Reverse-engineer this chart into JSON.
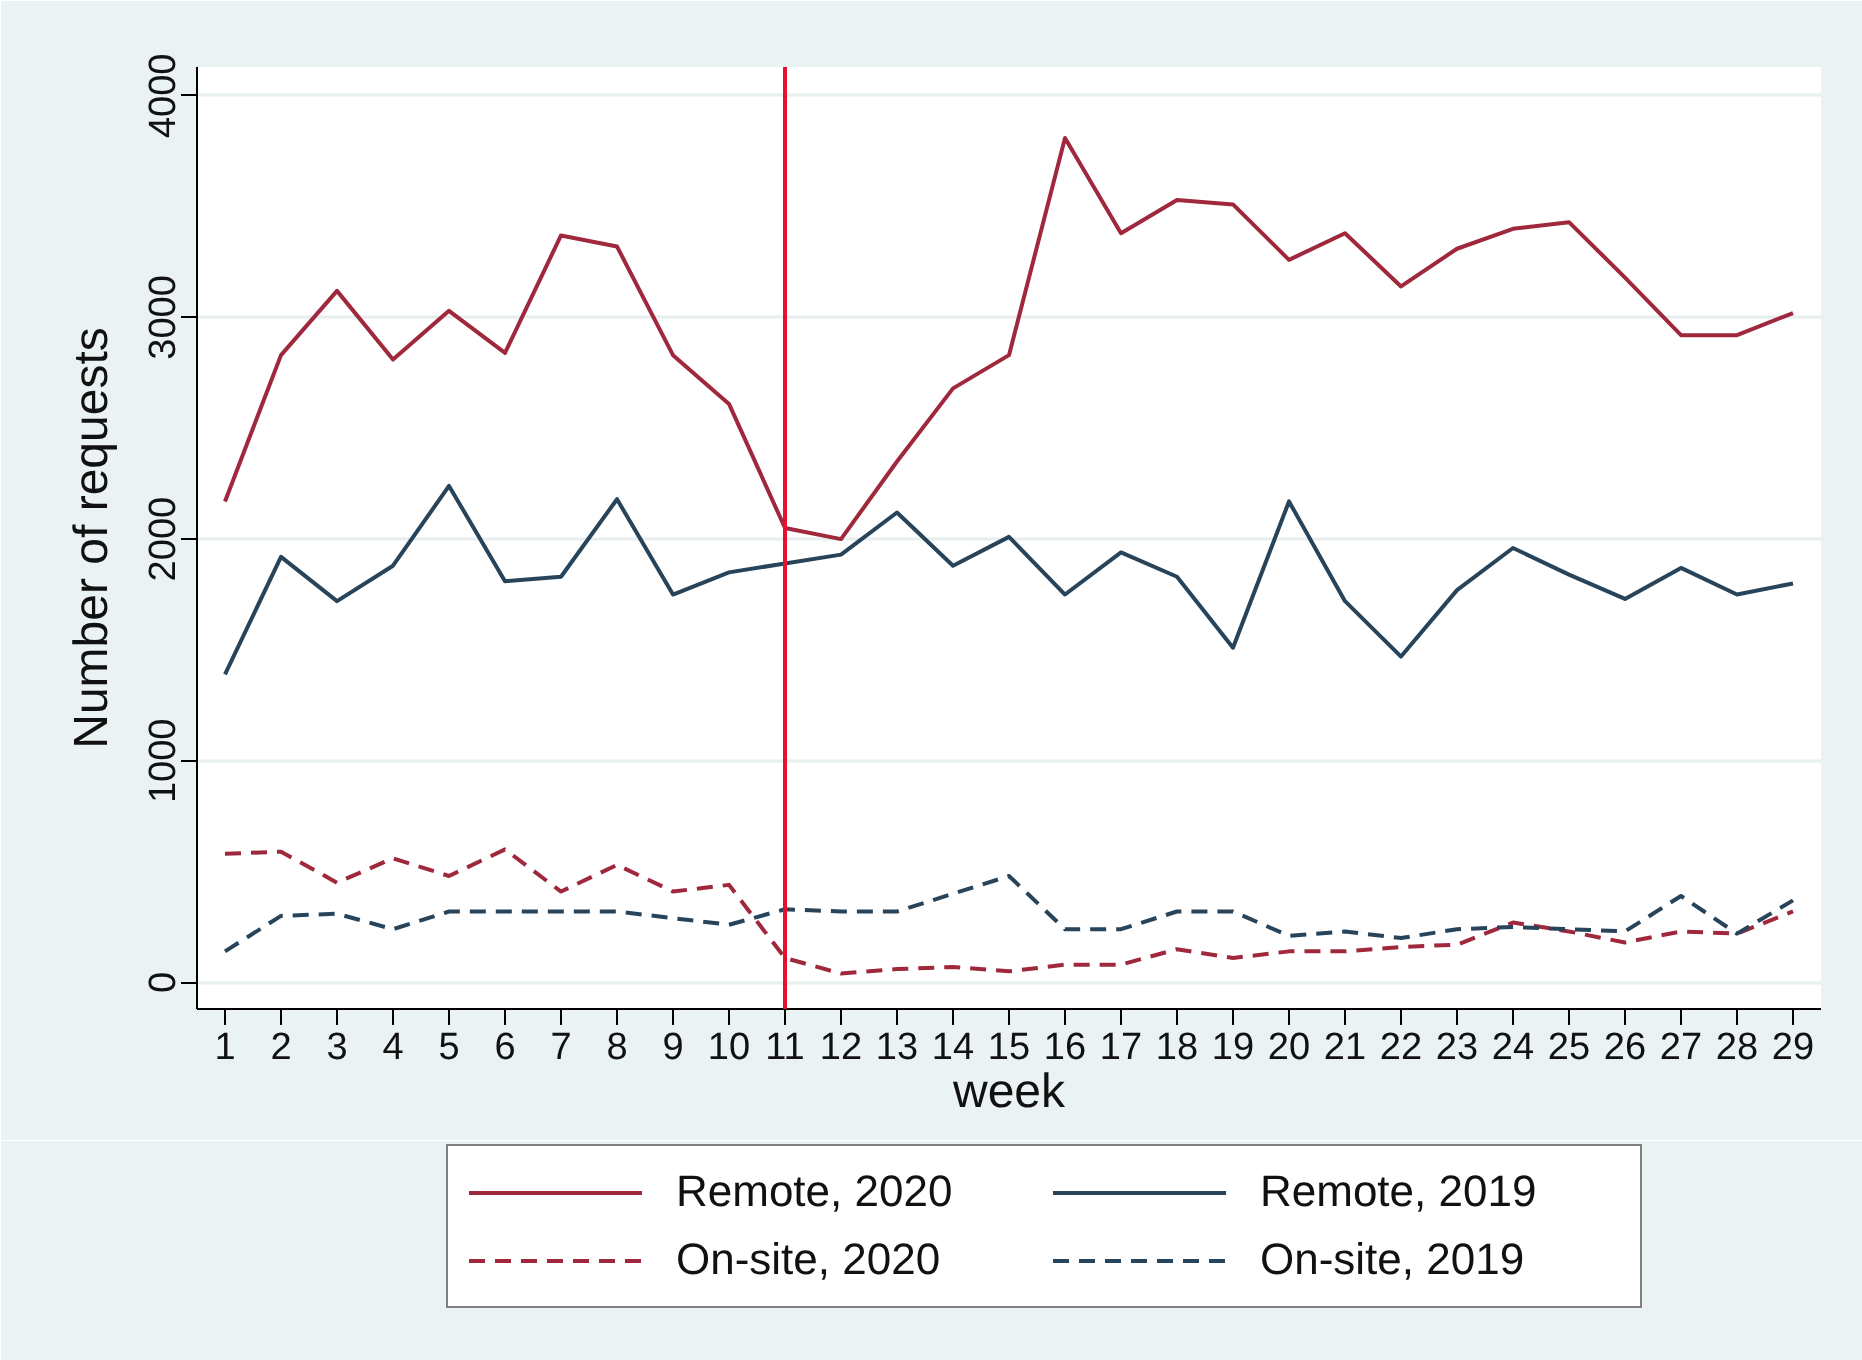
{
  "chart_data": {
    "type": "line",
    "xlabel": "week",
    "ylabel": "Number of requests",
    "x": [
      1,
      2,
      3,
      4,
      5,
      6,
      7,
      8,
      9,
      10,
      11,
      12,
      13,
      14,
      15,
      16,
      17,
      18,
      19,
      20,
      21,
      22,
      23,
      24,
      25,
      26,
      27,
      28,
      29
    ],
    "series": [
      {
        "name": "Remote, 2020",
        "color": "#a0283c",
        "line_style": "solid",
        "values": [
          2170,
          2830,
          3120,
          2810,
          3030,
          2840,
          3370,
          3320,
          2830,
          2610,
          2050,
          2000,
          2350,
          2680,
          2830,
          3810,
          3380,
          3530,
          3510,
          3260,
          3380,
          3140,
          3310,
          3400,
          3430,
          3180,
          2920,
          2920,
          3020
        ]
      },
      {
        "name": "Remote, 2019",
        "color": "#27445a",
        "line_style": "solid",
        "values": [
          1390,
          1920,
          1720,
          1880,
          2240,
          1810,
          1830,
          2180,
          1750,
          1850,
          1890,
          1930,
          2120,
          1880,
          2010,
          1750,
          1940,
          1830,
          1510,
          2170,
          1720,
          1470,
          1770,
          1960,
          1840,
          1730,
          1870,
          1750,
          1800
        ]
      },
      {
        "name": "On-site, 2020",
        "color": "#a0283c",
        "line_style": "dashed",
        "values": [
          580,
          590,
          450,
          560,
          480,
          600,
          410,
          530,
          410,
          440,
          110,
          40,
          60,
          70,
          50,
          80,
          80,
          150,
          110,
          140,
          140,
          160,
          170,
          270,
          230,
          180,
          230,
          220,
          320
        ]
      },
      {
        "name": "On-site, 2019",
        "color": "#27445a",
        "line_style": "dashed",
        "values": [
          140,
          300,
          310,
          240,
          320,
          320,
          320,
          320,
          290,
          260,
          330,
          320,
          320,
          400,
          480,
          240,
          240,
          320,
          320,
          210,
          230,
          200,
          240,
          250,
          240,
          230,
          390,
          220,
          370
        ]
      }
    ],
    "xlim": [
      0.5,
      29.5
    ],
    "xticks": [
      1,
      2,
      3,
      4,
      5,
      6,
      7,
      8,
      9,
      10,
      11,
      12,
      13,
      14,
      15,
      16,
      17,
      18,
      19,
      20,
      21,
      22,
      23,
      24,
      25,
      26,
      27,
      28,
      29
    ],
    "ylim": [
      -120,
      4130
    ],
    "yticks": [
      0,
      1000,
      2000,
      3000,
      4000
    ],
    "ref_lines": [
      {
        "axis": "x",
        "value": 11,
        "color": "#e8112d"
      }
    ],
    "grid": "y",
    "legend": "bottom"
  }
}
